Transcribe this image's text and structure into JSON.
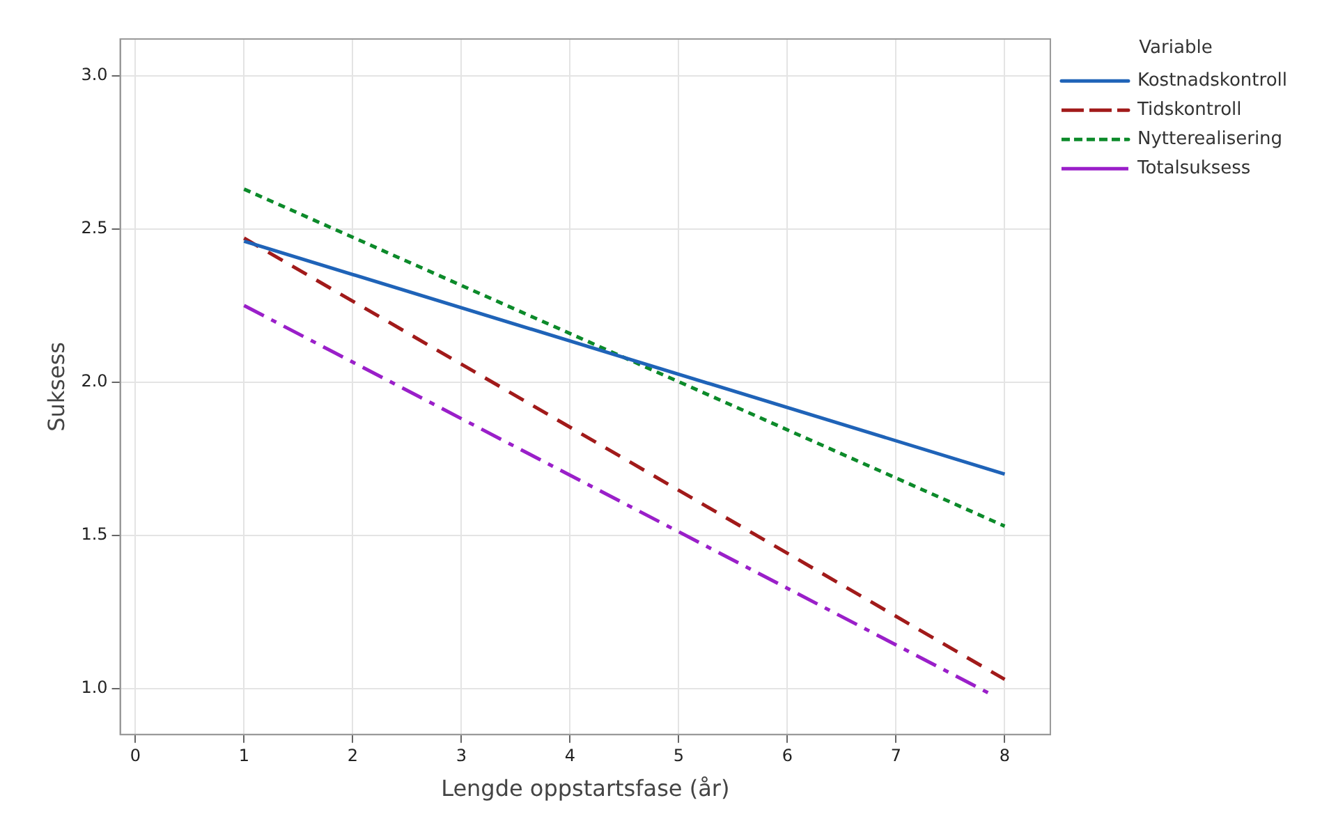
{
  "chart_data": {
    "type": "line",
    "xlabel": "Lengde oppstartsfase (år)",
    "ylabel": "Suksess",
    "legend_title": "Variable",
    "legend": "top right",
    "grid": true,
    "marker": "none",
    "xlim": [
      -0.14,
      8.42
    ],
    "xticks": [
      0,
      1,
      2,
      3,
      4,
      5,
      6,
      7,
      8
    ],
    "ylim": [
      0.85,
      3.12
    ],
    "yticks": [
      {
        "value": 1,
        "label": "1.0"
      },
      {
        "value": 1.5,
        "label": "1.5"
      },
      {
        "value": 2,
        "label": "2.0"
      },
      {
        "value": 2.5,
        "label": "2.5"
      },
      {
        "value": 3,
        "label": "3.0"
      }
    ],
    "series": [
      {
        "name": "Kostnadskontroll",
        "color": "#1f63b8",
        "line_style": "solid",
        "x": [
          1,
          8
        ],
        "values": [
          2.46,
          1.7
        ]
      },
      {
        "name": "Tidskontroll",
        "color": "#a11a1a",
        "line_style": "dashed",
        "x": [
          1,
          8
        ],
        "values": [
          2.47,
          1.03
        ]
      },
      {
        "name": "Nytterealisering",
        "color": "#0c8a2a",
        "line_style": "dotted",
        "x": [
          1,
          8
        ],
        "values": [
          2.63,
          1.53
        ]
      },
      {
        "name": "Totalsuksess",
        "color": "#9a1fc9",
        "line_style": "dashdot",
        "x": [
          1,
          7.88
        ],
        "values": [
          2.25,
          0.98
        ]
      }
    ]
  }
}
